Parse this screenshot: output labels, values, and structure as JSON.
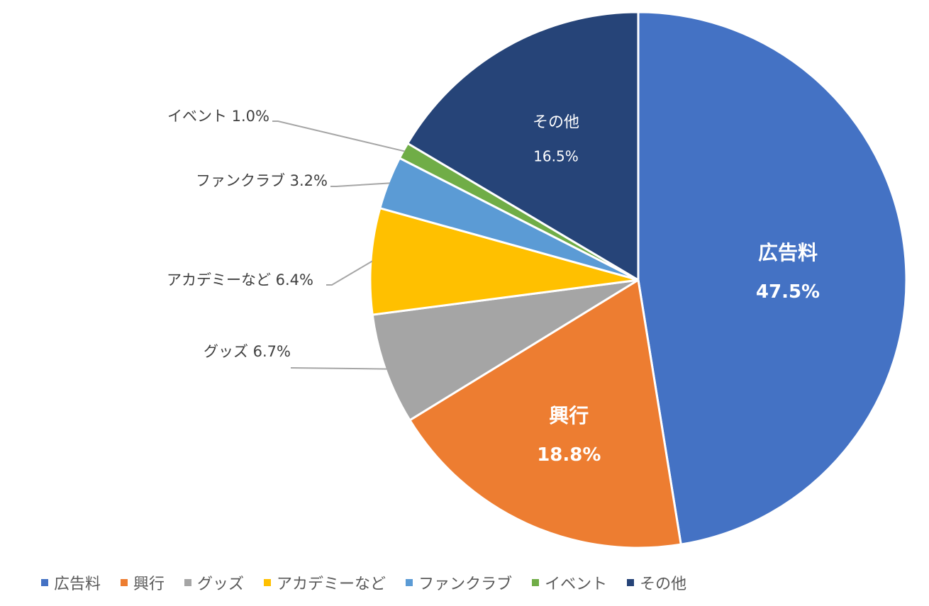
{
  "chart_data": {
    "type": "pie",
    "title": "",
    "slices": [
      {
        "label": "広告料",
        "value": 47.5,
        "value_text": "47.5%",
        "color": "#4472C4",
        "label_position": "inside"
      },
      {
        "label": "興行",
        "value": 18.8,
        "value_text": "18.8%",
        "color": "#ED7D31",
        "label_position": "inside"
      },
      {
        "label": "グッズ",
        "value": 6.7,
        "value_text": "6.7%",
        "color": "#A5A5A5",
        "label_position": "outside"
      },
      {
        "label": "アカデミーなど",
        "value": 6.4,
        "value_text": "6.4%",
        "color": "#FFC000",
        "label_position": "outside"
      },
      {
        "label": "ファンクラブ",
        "value": 3.2,
        "value_text": "3.2%",
        "color": "#5B9BD5",
        "label_position": "outside"
      },
      {
        "label": "イベント",
        "value": 1.0,
        "value_text": "1.0%",
        "color": "#70AD47",
        "label_position": "outside"
      },
      {
        "label": "その他",
        "value": 16.5,
        "value_text": "16.5%",
        "color": "#264478",
        "label_position": "inside"
      }
    ],
    "start_angle": "12 o'clock",
    "direction": "clockwise",
    "legend_placement": "bottom"
  }
}
